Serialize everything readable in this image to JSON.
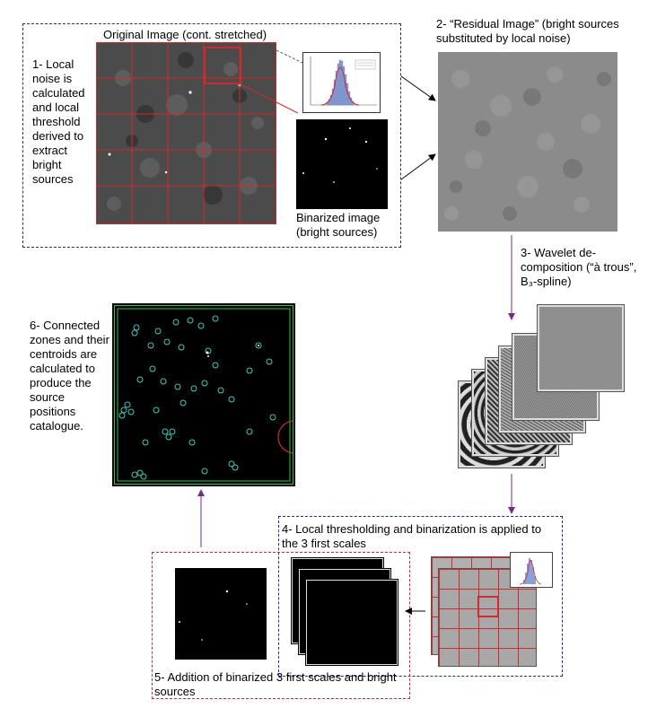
{
  "steps": {
    "step1": {
      "label": "1- Local noise is calculated and local threshold derived to extract bright sources",
      "original_image_title": "Original Image  (cont. stretched)",
      "binarized_caption": "Binarized image (bright sources)"
    },
    "step2": {
      "label": "2- “Residual Image”  (bright sources substituted by local noise)"
    },
    "step3": {
      "label": "3- Wavelet de-composition (“à trous”, B₃-spline)"
    },
    "step4": {
      "label": "4- Local thresholding and binarization  is applied to the 3 first scales"
    },
    "step5": {
      "label": "5- Addition of binarized 3 first scales and bright sources"
    },
    "step6": {
      "label": "6- Connected zones and their centroids are calculated to produce the source positions catalogue."
    }
  },
  "colors": {
    "grid_red": "#d22a2a",
    "box1_border": "#333333",
    "box4_border": "#1f2a8a",
    "box5_border": "#c8283c",
    "arrow_purple": "#7a2a8a",
    "circle_cyan": "#3ccfc0",
    "frame_green": "#35c24a"
  }
}
